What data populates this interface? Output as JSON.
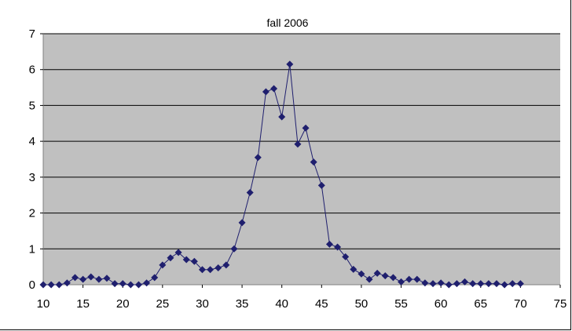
{
  "chart_data": {
    "type": "line",
    "title": "fall 2006",
    "xlabel": "",
    "ylabel": "",
    "xlim": [
      10,
      75
    ],
    "ylim": [
      0,
      7
    ],
    "x_ticks": [
      "10",
      "15",
      "20",
      "25",
      "30",
      "35",
      "40",
      "45",
      "50",
      "55",
      "60",
      "65",
      "70",
      "75"
    ],
    "y_ticks": [
      "0",
      "1",
      "2",
      "3",
      "4",
      "5",
      "6",
      "7"
    ],
    "grid": "horizontal",
    "plot_background": "#c0c0c0",
    "series_color": "#1f1f6e",
    "marker": "diamond",
    "series": [
      {
        "x": [
          10,
          11,
          12,
          13,
          14,
          15,
          16,
          17,
          18,
          19,
          20,
          21,
          22,
          23,
          24,
          25,
          26,
          27,
          28,
          29,
          30,
          31,
          32,
          33,
          34,
          35,
          36,
          37,
          38,
          39,
          40,
          41,
          42,
          43,
          44,
          45,
          46,
          47,
          48,
          49,
          50,
          51,
          52,
          53,
          54,
          55,
          56,
          57,
          58,
          59,
          60,
          61,
          62,
          63,
          64,
          65,
          66,
          67,
          68,
          69,
          70
        ],
        "values": [
          0,
          0,
          0,
          0.05,
          0.2,
          0.15,
          0.22,
          0.15,
          0.18,
          0.03,
          0.03,
          0,
          0,
          0.05,
          0.2,
          0.55,
          0.75,
          0.9,
          0.7,
          0.65,
          0.42,
          0.42,
          0.47,
          0.55,
          1.0,
          1.73,
          2.57,
          3.55,
          5.38,
          5.47,
          4.68,
          6.15,
          3.92,
          4.37,
          3.42,
          2.77,
          1.13,
          1.05,
          0.78,
          0.43,
          0.3,
          0.15,
          0.32,
          0.25,
          0.2,
          0.08,
          0.15,
          0.15,
          0.05,
          0.03,
          0.05,
          0,
          0.03,
          0.08,
          0.03,
          0.03,
          0.03,
          0.03,
          0,
          0.03,
          0.03
        ]
      }
    ]
  }
}
